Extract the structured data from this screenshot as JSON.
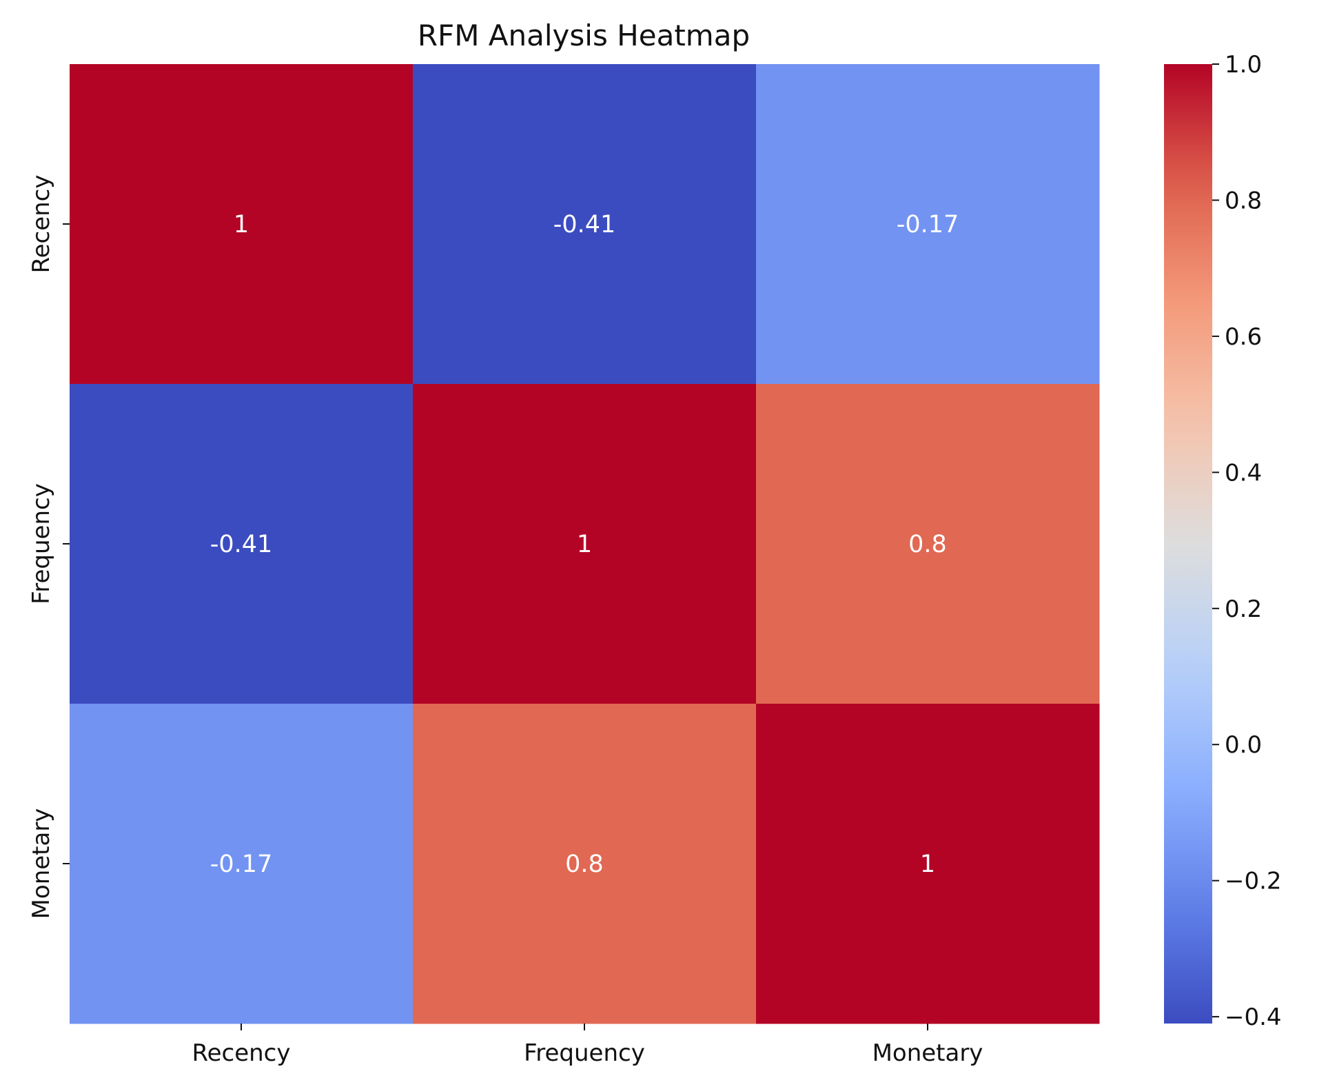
{
  "chart_data": {
    "type": "heatmap",
    "title": "RFM Analysis Heatmap",
    "xlabel": "",
    "ylabel": "",
    "x_categories": [
      "Recency",
      "Frequency",
      "Monetary"
    ],
    "y_categories": [
      "Recency",
      "Frequency",
      "Monetary"
    ],
    "values": [
      [
        1.0,
        -0.41,
        -0.17
      ],
      [
        -0.41,
        1.0,
        0.8
      ],
      [
        -0.17,
        0.8,
        1.0
      ]
    ],
    "cell_labels": [
      [
        "1",
        "-0.41",
        "-0.17"
      ],
      [
        "-0.41",
        "1",
        "0.8"
      ],
      [
        "-0.17",
        "0.8",
        "1"
      ]
    ],
    "colormap": "coolwarm",
    "colorbar": {
      "vmin": -0.41,
      "vmax": 1.0,
      "ticks": [
        1.0,
        0.8,
        0.6,
        0.4,
        0.2,
        0.0,
        -0.2,
        -0.4
      ],
      "tick_labels": [
        "1.0",
        "0.8",
        "0.6",
        "0.4",
        "0.2",
        "0.0",
        "−0.2",
        "−0.4"
      ]
    },
    "grid": false
  }
}
